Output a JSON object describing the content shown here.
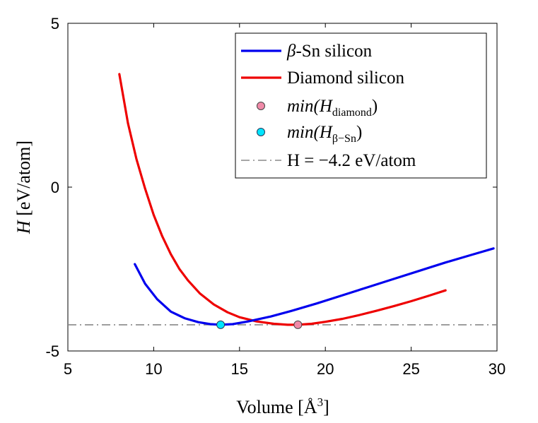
{
  "chart_data": {
    "type": "line",
    "xlabel": "Volume [Å",
    "xlabel_sup": "3",
    "xlabel_close": "]",
    "ylabel_var": "H",
    "ylabel_units": "[eV/atom]",
    "xlim": [
      5,
      30
    ],
    "ylim": [
      -5,
      5
    ],
    "x_ticks": [
      5,
      10,
      15,
      20,
      25,
      30
    ],
    "y_ticks": [
      -5,
      0,
      5
    ],
    "grid": false,
    "legend_position": "top-right",
    "series": [
      {
        "name": "β-Sn silicon",
        "name_greek": "β",
        "name_rest": "-Sn silicon",
        "color": "#0000ee",
        "style": "solid",
        "x": [
          8.9,
          9.5,
          10.2,
          11.0,
          11.8,
          12.6,
          13.3,
          13.9,
          14.6,
          15.5,
          16.8,
          18.0,
          19.5,
          21.0,
          22.5,
          24.0,
          25.5,
          27.0,
          28.5,
          29.8
        ],
        "y": [
          -2.35,
          -2.95,
          -3.42,
          -3.8,
          -4.0,
          -4.12,
          -4.18,
          -4.2,
          -4.18,
          -4.1,
          -3.95,
          -3.78,
          -3.55,
          -3.3,
          -3.05,
          -2.8,
          -2.55,
          -2.3,
          -2.07,
          -1.87
        ]
      },
      {
        "name": "Diamond silicon",
        "color": "#ee0000",
        "style": "solid",
        "x": [
          8.0,
          8.5,
          9.0,
          9.5,
          10.0,
          10.5,
          11.0,
          11.5,
          12.0,
          12.7,
          13.5,
          14.3,
          15.0,
          16.0,
          17.0,
          17.8,
          18.4,
          19.2,
          20.0,
          21.0,
          22.0,
          23.0,
          24.0,
          25.0,
          26.0,
          27.0
        ],
        "y": [
          3.45,
          1.95,
          0.85,
          -0.05,
          -0.85,
          -1.5,
          -2.05,
          -2.5,
          -2.85,
          -3.25,
          -3.58,
          -3.82,
          -3.97,
          -4.1,
          -4.17,
          -4.2,
          -4.2,
          -4.17,
          -4.11,
          -4.02,
          -3.9,
          -3.77,
          -3.63,
          -3.48,
          -3.32,
          -3.15
        ]
      },
      {
        "name": "H = −4.2 eV/atom",
        "color": "#888888",
        "style": "dashdot",
        "x": [
          5,
          30
        ],
        "y": [
          -4.2,
          -4.2
        ]
      }
    ],
    "points": [
      {
        "name": "min(H diamond)",
        "x": 18.4,
        "y": -4.2,
        "color": "#f08aa8",
        "edge": "#444444"
      },
      {
        "name": "min(H β-Sn)",
        "x": 13.9,
        "y": -4.2,
        "color": "#00e5ff",
        "edge": "#2a3a5a"
      }
    ],
    "legend": {
      "entries": [
        {
          "kind": "line",
          "color": "#0000ee",
          "text_greek": "β",
          "text_rest": "-Sn silicon"
        },
        {
          "kind": "line",
          "color": "#ee0000",
          "text_main": "Diamond silicon"
        },
        {
          "kind": "marker",
          "color": "#f08aa8",
          "edge": "#444444",
          "text_main": "min(H",
          "text_sub": "diamond",
          "text_close": ")"
        },
        {
          "kind": "marker",
          "color": "#00e5ff",
          "edge": "#2a3a5a",
          "text_main": "min(H",
          "text_sub": "β−Sn",
          "text_close": ")"
        },
        {
          "kind": "dashdot",
          "color": "#888888",
          "text_main": "H = −4.2 eV/atom"
        }
      ]
    }
  }
}
